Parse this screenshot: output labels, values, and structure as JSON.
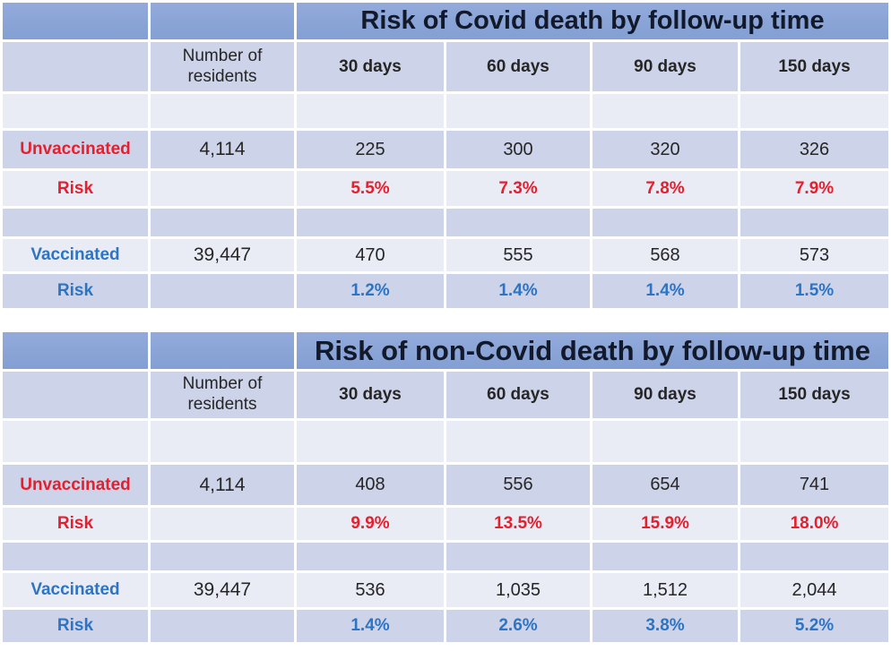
{
  "colors": {
    "title_band": "#8aa4d7",
    "row_medium": "#cdd3e8",
    "row_light": "#e9ebf5",
    "title_text": "#11192b",
    "data_text": "#262626",
    "unvaccinated_red": "#e51f2d",
    "vaccinated_blue": "#2d74c4",
    "gridline": "#ffffff"
  },
  "chart_data": [
    {
      "type": "table",
      "title": "Risk of Covid death by follow-up time",
      "columns": [
        "",
        "Number of residents",
        "30 days",
        "60 days",
        "90 days",
        "150 days"
      ],
      "rows": [
        {
          "label": "Unvaccinated",
          "residents": "4,114",
          "values": [
            "225",
            "300",
            "320",
            "326"
          ]
        },
        {
          "label": "Risk",
          "residents": "",
          "values": [
            "5.5%",
            "7.3%",
            "7.8%",
            "7.9%"
          ]
        },
        {
          "label": "Vaccinated",
          "residents": "39,447",
          "values": [
            "470",
            "555",
            "568",
            "573"
          ]
        },
        {
          "label": "Risk",
          "residents": "",
          "values": [
            "1.2%",
            "1.4%",
            "1.4%",
            "1.5%"
          ]
        }
      ]
    },
    {
      "type": "table",
      "title": "Risk of non-Covid death by follow-up time",
      "columns": [
        "",
        "Number of residents",
        "30 days",
        "60 days",
        "90 days",
        "150 days"
      ],
      "rows": [
        {
          "label": "Unvaccinated",
          "residents": "4,114",
          "values": [
            "408",
            "556",
            "654",
            "741"
          ]
        },
        {
          "label": "Risk",
          "residents": "",
          "values": [
            "9.9%",
            "13.5%",
            "15.9%",
            "18.0%"
          ]
        },
        {
          "label": "Vaccinated",
          "residents": "39,447",
          "values": [
            "536",
            "1,035",
            "1,512",
            "2,044"
          ]
        },
        {
          "label": "Risk",
          "residents": "",
          "values": [
            "1.4%",
            "2.6%",
            "3.8%",
            "5.2%"
          ]
        }
      ]
    }
  ]
}
